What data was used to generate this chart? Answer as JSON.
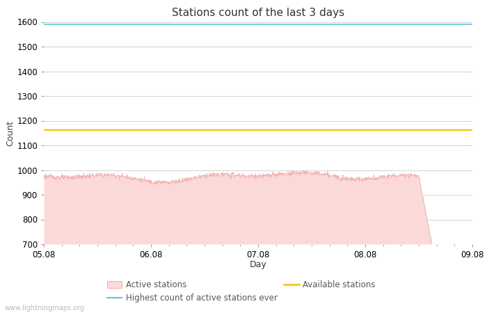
{
  "title": "Stations count of the last 3 days",
  "xlabel": "Day",
  "ylabel": "Count",
  "ylim": [
    700,
    1600
  ],
  "yticks": [
    700,
    800,
    900,
    1000,
    1100,
    1200,
    1300,
    1400,
    1500,
    1600
  ],
  "x_start": 0.0,
  "x_end": 4.0,
  "xtick_positions": [
    0.0,
    1.0,
    2.0,
    3.0,
    4.0
  ],
  "xtick_labels": [
    "05.08",
    "06.08",
    "07.08",
    "08.08",
    "09.08"
  ],
  "highest_ever": 1590,
  "available_stations": 1163,
  "active_mean": 975,
  "active_small_noise": 5,
  "active_color_fill": "#fcd9d9",
  "active_color_line": "#f0b0b0",
  "highest_color": "#5bc8d8",
  "available_color": "#f5c400",
  "background_color": "#ffffff",
  "grid_color": "#cccccc",
  "title_fontsize": 11,
  "axis_fontsize": 9,
  "tick_fontsize": 8.5,
  "legend_fontsize": 8.5,
  "watermark": "www.lightningmaps.org",
  "num_points": 1000,
  "data_end_x": 3.62,
  "active_drop_start": 3.5,
  "active_drop_end": 3.62
}
